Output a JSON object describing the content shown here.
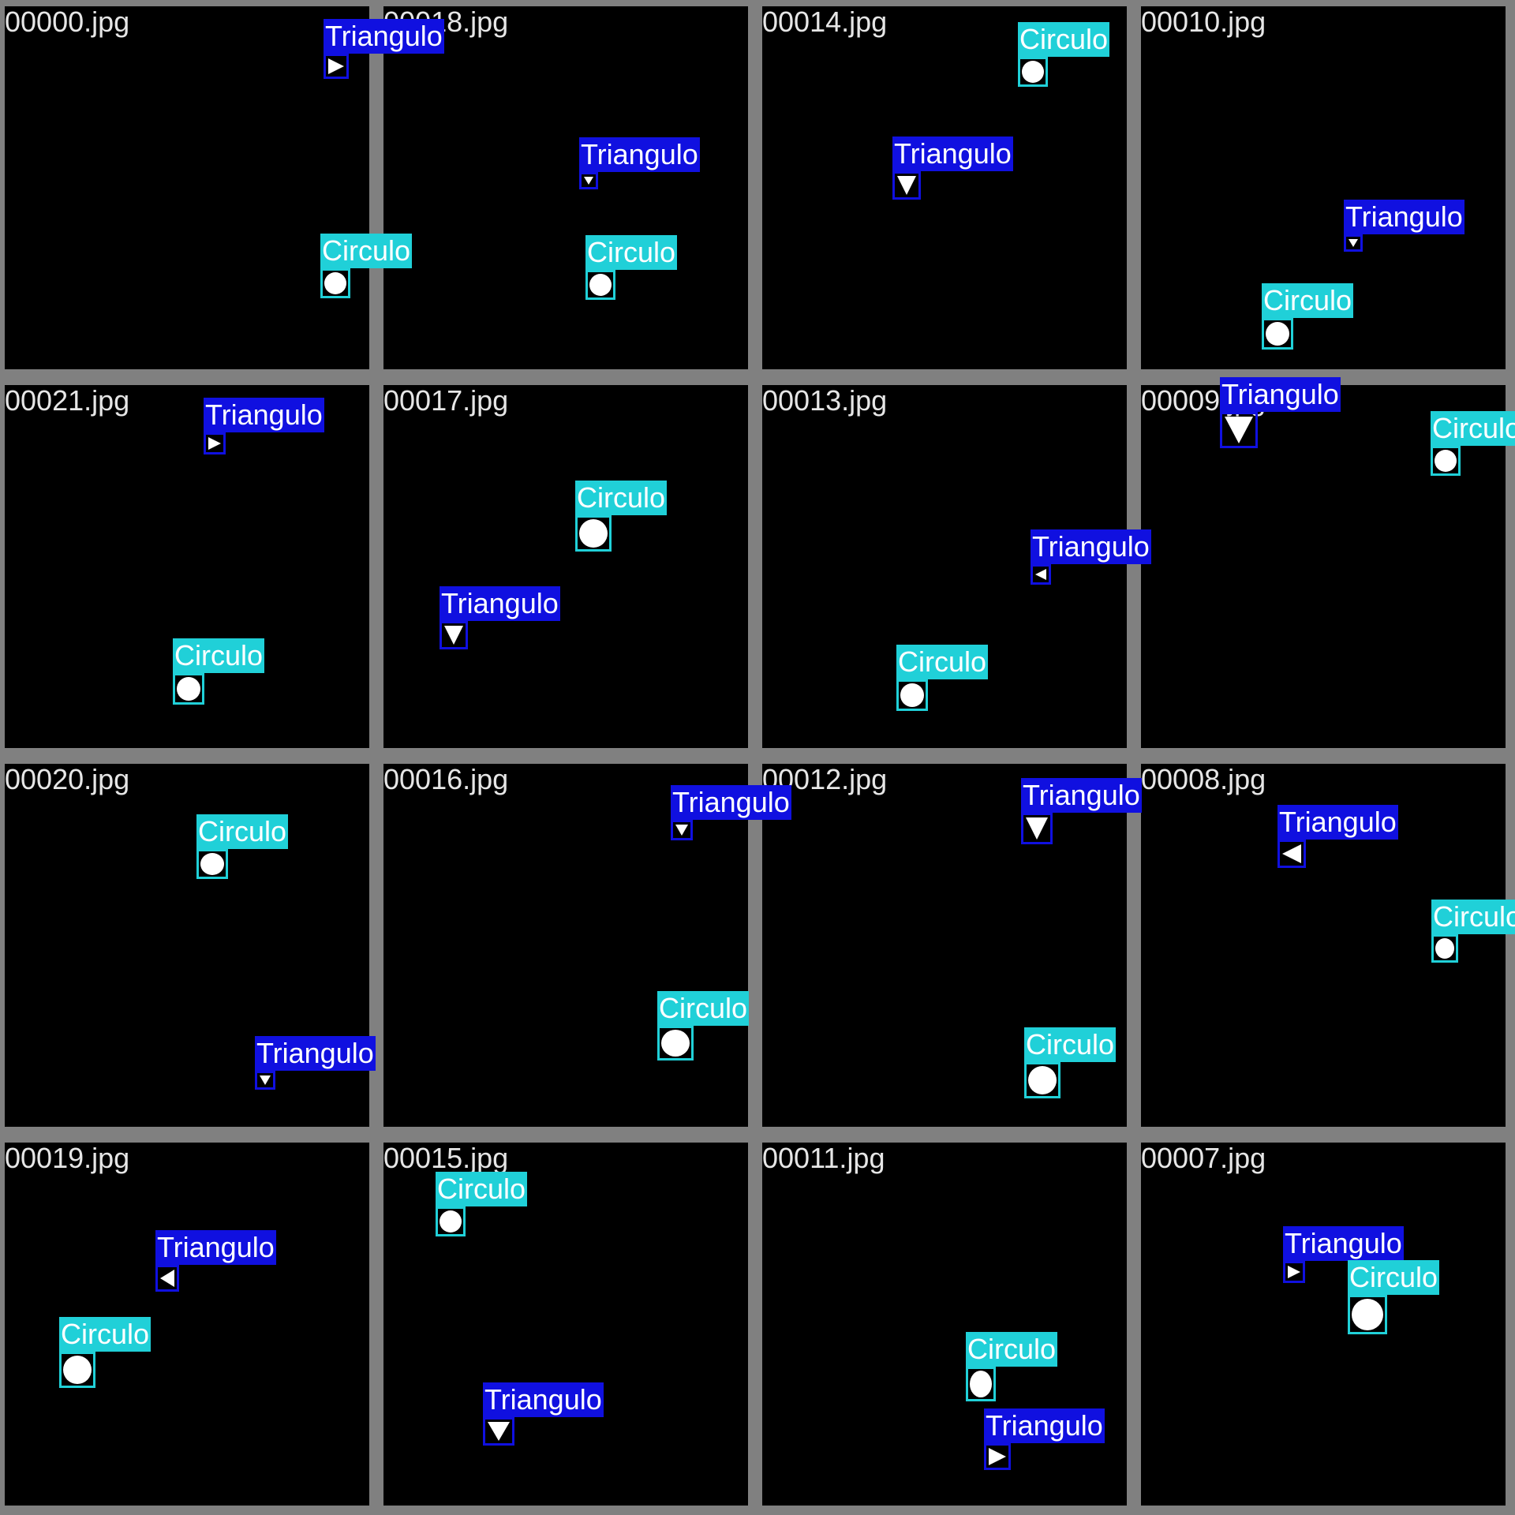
{
  "tiles": [
    {
      "file": "00000.jpg",
      "objects": [
        {
          "cls": "Triangulo",
          "dir": "right"
        },
        {
          "cls": "Circulo"
        }
      ]
    },
    {
      "file": "00018.jpg",
      "objects": [
        {
          "cls": "Triangulo",
          "dir": "down"
        },
        {
          "cls": "Circulo"
        }
      ]
    },
    {
      "file": "00014.jpg",
      "objects": [
        {
          "cls": "Circulo"
        },
        {
          "cls": "Triangulo",
          "dir": "down"
        }
      ]
    },
    {
      "file": "00010.jpg",
      "objects": [
        {
          "cls": "Triangulo",
          "dir": "down"
        },
        {
          "cls": "Circulo"
        }
      ]
    },
    {
      "file": "00021.jpg",
      "objects": [
        {
          "cls": "Triangulo",
          "dir": "right"
        },
        {
          "cls": "Circulo"
        }
      ]
    },
    {
      "file": "00017.jpg",
      "objects": [
        {
          "cls": "Circulo"
        },
        {
          "cls": "Triangulo",
          "dir": "down"
        }
      ]
    },
    {
      "file": "00013.jpg",
      "objects": [
        {
          "cls": "Triangulo",
          "dir": "left"
        },
        {
          "cls": "Circulo"
        }
      ]
    },
    {
      "file": "00009.jpg",
      "objects": [
        {
          "cls": "Triangulo",
          "dir": "down"
        },
        {
          "cls": "Circulo"
        }
      ]
    },
    {
      "file": "00020.jpg",
      "objects": [
        {
          "cls": "Circulo"
        },
        {
          "cls": "Triangulo",
          "dir": "down"
        }
      ]
    },
    {
      "file": "00016.jpg",
      "objects": [
        {
          "cls": "Triangulo",
          "dir": "down"
        },
        {
          "cls": "Circulo"
        }
      ]
    },
    {
      "file": "00012.jpg",
      "objects": [
        {
          "cls": "Triangulo",
          "dir": "down"
        },
        {
          "cls": "Circulo"
        }
      ]
    },
    {
      "file": "00008.jpg",
      "objects": [
        {
          "cls": "Triangulo",
          "dir": "left"
        },
        {
          "cls": "Circulo"
        }
      ]
    },
    {
      "file": "00019.jpg",
      "objects": [
        {
          "cls": "Triangulo",
          "dir": "left"
        },
        {
          "cls": "Circulo"
        }
      ]
    },
    {
      "file": "00015.jpg",
      "objects": [
        {
          "cls": "Circulo"
        },
        {
          "cls": "Triangulo",
          "dir": "down"
        }
      ]
    },
    {
      "file": "00011.jpg",
      "objects": [
        {
          "cls": "Circulo"
        },
        {
          "cls": "Triangulo",
          "dir": "right"
        }
      ]
    },
    {
      "file": "00007.jpg",
      "objects": [
        {
          "cls": "Triangulo",
          "dir": "right"
        },
        {
          "cls": "Circulo"
        }
      ]
    }
  ],
  "colors": {
    "triangulo": "#1010e0",
    "circulo": "#20d0d8",
    "background": "#000000",
    "grid": "#808080"
  }
}
